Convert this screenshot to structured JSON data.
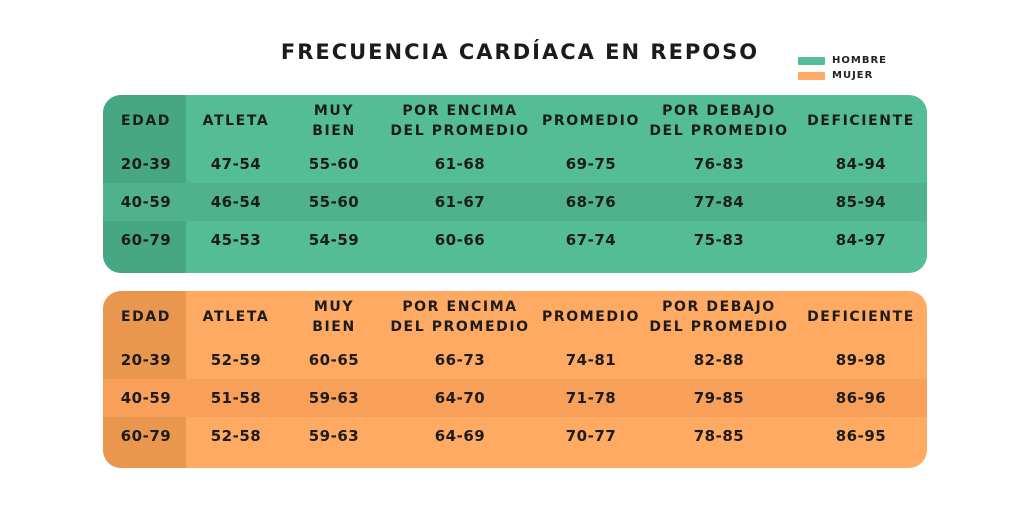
{
  "title": "FRECUENCIA CARDÍACA EN REPOSO",
  "legend": [
    {
      "label": "HOMBRE",
      "color": "#55bd96"
    },
    {
      "label": "MUJER",
      "color": "#ffaa63"
    }
  ],
  "columns": [
    "EDAD",
    "ATLETA",
    "MUY\nBIEN",
    "POR ENCIMA\nDEL PROMEDIO",
    "PROMEDIO",
    "POR DEBAJO\nDEL PROMEDIO",
    "DEFICIENTE"
  ],
  "chart_data": {
    "type": "table",
    "title": "FRECUENCIA CARDÍACA EN REPOSO",
    "columns": [
      "EDAD",
      "ATLETA",
      "MUY BIEN",
      "POR ENCIMA DEL PROMEDIO",
      "PROMEDIO",
      "POR DEBAJO DEL PROMEDIO",
      "DEFICIENTE"
    ],
    "tables": [
      {
        "name": "HOMBRE",
        "color": "#55bd96",
        "rows": [
          [
            "20-39",
            "47-54",
            "55-60",
            "61-68",
            "69-75",
            "76-83",
            "84-94"
          ],
          [
            "40-59",
            "46-54",
            "55-60",
            "61-67",
            "68-76",
            "77-84",
            "85-94"
          ],
          [
            "60-79",
            "45-53",
            "54-59",
            "60-66",
            "67-74",
            "75-83",
            "84-97"
          ]
        ]
      },
      {
        "name": "MUJER",
        "color": "#ffaa63",
        "rows": [
          [
            "20-39",
            "52-59",
            "60-65",
            "66-73",
            "74-81",
            "82-88",
            "89-98"
          ],
          [
            "40-59",
            "51-58",
            "59-63",
            "64-70",
            "71-78",
            "79-85",
            "86-96"
          ],
          [
            "60-79",
            "52-58",
            "59-63",
            "64-69",
            "70-77",
            "78-85",
            "86-95"
          ]
        ]
      }
    ]
  }
}
